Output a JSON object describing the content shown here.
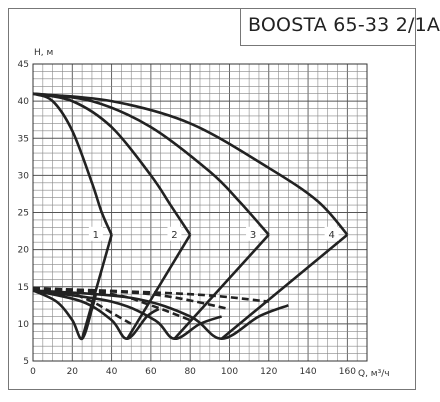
{
  "chart_data": {
    "type": "line",
    "title": "BOOSTA 65-33 2/1A",
    "xlabel": "Q, м³/ч",
    "ylabel": "H, м",
    "xlim": [
      0,
      170
    ],
    "ylim": [
      5,
      45
    ],
    "x_ticks": [
      0,
      20,
      40,
      60,
      80,
      100,
      120,
      140,
      160
    ],
    "y_ticks": [
      5,
      10,
      15,
      20,
      25,
      30,
      35,
      40,
      45
    ],
    "grid": true,
    "head_curves": [
      {
        "label": "1",
        "points": [
          [
            0,
            41
          ],
          [
            10,
            40
          ],
          [
            20,
            36
          ],
          [
            30,
            29
          ],
          [
            35,
            25
          ],
          [
            40,
            22
          ]
        ]
      },
      {
        "label": "2",
        "points": [
          [
            0,
            41
          ],
          [
            20,
            40
          ],
          [
            40,
            36.5
          ],
          [
            60,
            30
          ],
          [
            70,
            26
          ],
          [
            80,
            22
          ]
        ]
      },
      {
        "label": "3",
        "points": [
          [
            0,
            41
          ],
          [
            30,
            40
          ],
          [
            60,
            36.5
          ],
          [
            90,
            30.5
          ],
          [
            105,
            26.5
          ],
          [
            120,
            22
          ]
        ]
      },
      {
        "label": "4",
        "points": [
          [
            0,
            41
          ],
          [
            40,
            40
          ],
          [
            80,
            37
          ],
          [
            120,
            31
          ],
          [
            145,
            26.5
          ],
          [
            160,
            22
          ]
        ]
      }
    ],
    "system_curves": [
      {
        "label": "1",
        "points": [
          [
            40,
            22
          ],
          [
            25,
            8
          ]
        ]
      },
      {
        "label": "2",
        "points": [
          [
            80,
            22
          ],
          [
            48,
            8
          ]
        ]
      },
      {
        "label": "3",
        "points": [
          [
            120,
            22
          ],
          [
            72,
            8
          ]
        ]
      },
      {
        "label": "4",
        "points": [
          [
            160,
            22
          ],
          [
            96,
            8
          ]
        ]
      }
    ],
    "lower_curves": [
      {
        "label": "1",
        "points": [
          [
            0,
            14.5
          ],
          [
            12,
            13
          ],
          [
            20,
            10.5
          ],
          [
            25,
            8
          ],
          [
            30,
            12
          ],
          [
            32,
            14
          ]
        ]
      },
      {
        "label": "2",
        "points": [
          [
            0,
            14.5
          ],
          [
            25,
            13
          ],
          [
            40,
            10.5
          ],
          [
            48,
            8
          ],
          [
            58,
            11
          ],
          [
            64,
            12
          ]
        ]
      },
      {
        "label": "3",
        "points": [
          [
            0,
            14.5
          ],
          [
            40,
            13
          ],
          [
            62,
            10.5
          ],
          [
            72,
            8
          ],
          [
            85,
            10
          ],
          [
            96,
            11
          ]
        ]
      },
      {
        "label": "4",
        "points": [
          [
            0,
            14.5
          ],
          [
            50,
            13.5
          ],
          [
            80,
            11
          ],
          [
            96,
            8
          ],
          [
            115,
            11
          ],
          [
            130,
            12.5
          ]
        ]
      }
    ],
    "dashed_curves": [
      {
        "label": "1",
        "points": [
          [
            0,
            14.8
          ],
          [
            15,
            14.5
          ],
          [
            30,
            13
          ],
          [
            40,
            11.5
          ],
          [
            50,
            10
          ]
        ]
      },
      {
        "label": "2",
        "points": [
          [
            0,
            14.8
          ],
          [
            40,
            14
          ],
          [
            60,
            12.5
          ],
          [
            80,
            10.5
          ]
        ]
      },
      {
        "label": "3",
        "points": [
          [
            0,
            14.8
          ],
          [
            60,
            14
          ],
          [
            100,
            12
          ]
        ]
      },
      {
        "label": "4",
        "points": [
          [
            0,
            14.8
          ],
          [
            80,
            14
          ],
          [
            120,
            13
          ]
        ]
      }
    ],
    "curve_labels": [
      {
        "text": "1",
        "x": 32,
        "y": 22
      },
      {
        "text": "2",
        "x": 72,
        "y": 22
      },
      {
        "text": "3",
        "x": 112,
        "y": 22
      },
      {
        "text": "4",
        "x": 152,
        "y": 22
      }
    ]
  }
}
